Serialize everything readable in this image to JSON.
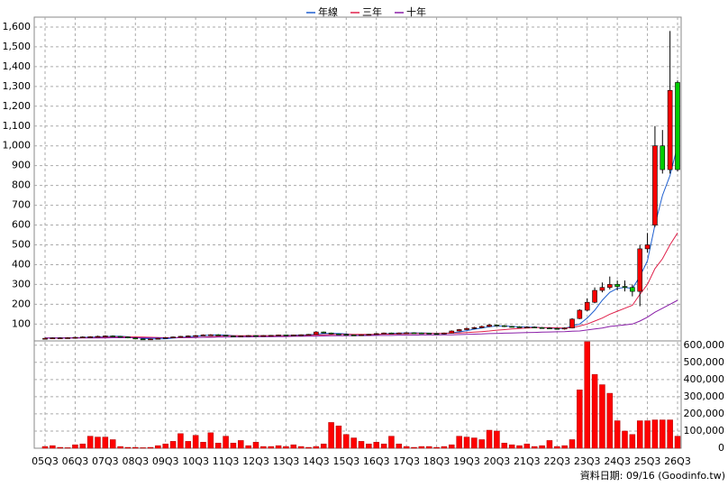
{
  "chart_data": {
    "type": "candlestick",
    "legend": "top",
    "categories": [
      "05Q3",
      null,
      null,
      null,
      "06Q3",
      null,
      null,
      null,
      "07Q3",
      null,
      null,
      null,
      "08Q3",
      null,
      null,
      null,
      "09Q3",
      null,
      null,
      null,
      "10Q3",
      null,
      null,
      null,
      "11Q3",
      null,
      null,
      null,
      "12Q3",
      null,
      null,
      null,
      "13Q3",
      null,
      null,
      null,
      "14Q3",
      null,
      null,
      null,
      "15Q3",
      null,
      null,
      null,
      "16Q3",
      null,
      null,
      null,
      "17Q3",
      null,
      null,
      null,
      "18Q3",
      null,
      null,
      null,
      "19Q3",
      null,
      null,
      null,
      "20Q3",
      null,
      null,
      null,
      "21Q3",
      null,
      null,
      null,
      "22Q3",
      null,
      null,
      null,
      "23Q3",
      null,
      null,
      null,
      "24Q3",
      null,
      null,
      null,
      "25Q3",
      null,
      null,
      null,
      "26Q3"
    ],
    "open": [
      27,
      28,
      30,
      30,
      31,
      33,
      35,
      36,
      38,
      40,
      38,
      35,
      30,
      25,
      22,
      25,
      28,
      32,
      35,
      38,
      40,
      42,
      45,
      46,
      44,
      40,
      38,
      40,
      42,
      40,
      42,
      43,
      45,
      44,
      45,
      46,
      48,
      60,
      55,
      50,
      48,
      45,
      43,
      46,
      48,
      52,
      55,
      54,
      55,
      56,
      55,
      54,
      52,
      50,
      55,
      65,
      72,
      78,
      82,
      88,
      95,
      92,
      88,
      86,
      84,
      85,
      82,
      80,
      78,
      75,
      80,
      128,
      170,
      210,
      270,
      285,
      300,
      290,
      285,
      265,
      480,
      600,
      1000,
      880,
      1320
    ],
    "high": [
      31,
      32,
      33,
      34,
      36,
      38,
      39,
      41,
      43,
      43,
      40,
      37,
      32,
      27,
      27,
      30,
      34,
      37,
      40,
      43,
      45,
      48,
      49,
      49,
      46,
      42,
      42,
      44,
      44,
      44,
      45,
      47,
      47,
      47,
      48,
      50,
      64,
      62,
      57,
      52,
      50,
      47,
      48,
      50,
      54,
      57,
      57,
      57,
      58,
      58,
      57,
      56,
      54,
      57,
      68,
      75,
      82,
      86,
      92,
      100,
      98,
      95,
      91,
      89,
      88,
      88,
      85,
      83,
      81,
      83,
      130,
      175,
      230,
      285,
      310,
      340,
      320,
      320,
      300,
      500,
      560,
      1100,
      1080,
      1580,
      1330
    ],
    "low": [
      25,
      26,
      28,
      28,
      29,
      31,
      33,
      34,
      36,
      36,
      33,
      28,
      23,
      20,
      20,
      23,
      26,
      30,
      33,
      36,
      38,
      40,
      43,
      42,
      38,
      36,
      36,
      38,
      38,
      38,
      40,
      41,
      42,
      42,
      43,
      44,
      46,
      53,
      48,
      46,
      43,
      41,
      41,
      44,
      46,
      50,
      52,
      52,
      53,
      53,
      52,
      50,
      48,
      48,
      53,
      63,
      70,
      75,
      80,
      85,
      88,
      85,
      83,
      81,
      81,
      79,
      77,
      75,
      72,
      72,
      78,
      125,
      165,
      205,
      260,
      275,
      270,
      265,
      240,
      190,
      460,
      590,
      860,
      860,
      870
    ],
    "close": [
      28,
      30,
      30,
      31,
      33,
      35,
      36,
      38,
      40,
      38,
      35,
      30,
      25,
      22,
      25,
      28,
      32,
      35,
      38,
      40,
      42,
      45,
      46,
      44,
      40,
      38,
      40,
      42,
      40,
      42,
      43,
      45,
      44,
      45,
      46,
      48,
      60,
      55,
      50,
      48,
      45,
      43,
      46,
      48,
      52,
      55,
      54,
      55,
      56,
      55,
      54,
      52,
      50,
      55,
      65,
      72,
      78,
      82,
      88,
      95,
      92,
      88,
      86,
      84,
      85,
      82,
      80,
      78,
      75,
      80,
      125,
      170,
      210,
      270,
      285,
      300,
      290,
      285,
      265,
      480,
      500,
      1000,
      880,
      1280,
      880
    ],
    "volume": [
      10000,
      15000,
      5000,
      3000,
      20000,
      25000,
      70000,
      65000,
      65000,
      50000,
      10000,
      5000,
      5000,
      3000,
      5000,
      15000,
      25000,
      40000,
      85000,
      40000,
      75000,
      35000,
      90000,
      30000,
      70000,
      30000,
      45000,
      15000,
      35000,
      10000,
      10000,
      15000,
      10000,
      20000,
      10000,
      5000,
      10000,
      25000,
      150000,
      130000,
      80000,
      60000,
      40000,
      25000,
      35000,
      25000,
      70000,
      25000,
      10000,
      5000,
      10000,
      10000,
      5000,
      10000,
      20000,
      70000,
      65000,
      60000,
      50000,
      105000,
      100000,
      30000,
      20000,
      15000,
      25000,
      10000,
      15000,
      45000,
      10000,
      15000,
      50000,
      340000,
      620000,
      430000,
      370000,
      320000,
      160000,
      100000,
      80000,
      160000,
      160000,
      165000,
      165000,
      165000,
      70000
    ],
    "up_color": "#ff0000",
    "down_color": "#00cc00",
    "volume_color": "#ff0000",
    "lines": [
      {
        "name": "年線",
        "color": "#1f5fd0",
        "values": [
          29,
          29,
          30,
          30,
          31,
          32,
          34,
          35,
          37,
          38,
          38,
          36,
          32,
          28,
          25,
          25,
          26,
          29,
          32,
          36,
          39,
          42,
          44,
          45,
          44,
          42,
          40,
          40,
          41,
          41,
          41,
          42,
          43,
          44,
          45,
          46,
          49,
          52,
          53,
          53,
          50,
          47,
          45,
          45,
          47,
          50,
          53,
          54,
          55,
          55,
          55,
          54,
          53,
          53,
          56,
          60,
          67,
          74,
          80,
          87,
          90,
          90,
          88,
          86,
          84,
          84,
          82,
          80,
          78,
          78,
          90,
          100,
          130,
          170,
          220,
          260,
          280,
          285,
          280,
          340,
          420,
          600,
          750,
          850,
          1000
        ]
      },
      {
        "name": "三年",
        "color": "#e0204a",
        "values": [
          30,
          30,
          30,
          30,
          30,
          31,
          31,
          32,
          33,
          34,
          35,
          35,
          35,
          34,
          33,
          32,
          31,
          31,
          31,
          31,
          32,
          34,
          36,
          38,
          40,
          41,
          41,
          41,
          41,
          41,
          41,
          41,
          41,
          42,
          42,
          43,
          44,
          46,
          47,
          48,
          48,
          48,
          48,
          48,
          48,
          49,
          49,
          50,
          51,
          52,
          53,
          53,
          53,
          53,
          54,
          55,
          57,
          59,
          62,
          65,
          69,
          72,
          75,
          78,
          80,
          82,
          82,
          82,
          81,
          80,
          82,
          90,
          100,
          115,
          130,
          150,
          165,
          180,
          195,
          250,
          300,
          380,
          430,
          500,
          560
        ]
      },
      {
        "name": "十年",
        "color": "#8a1fa8",
        "values": [
          30,
          30,
          30,
          30,
          30,
          30,
          30,
          30,
          30,
          31,
          31,
          31,
          31,
          31,
          31,
          31,
          31,
          31,
          32,
          32,
          32,
          33,
          33,
          34,
          34,
          35,
          35,
          35,
          36,
          36,
          36,
          37,
          37,
          38,
          38,
          39,
          39,
          40,
          41,
          41,
          41,
          42,
          42,
          42,
          43,
          43,
          43,
          44,
          44,
          44,
          45,
          45,
          45,
          46,
          46,
          47,
          48,
          49,
          50,
          52,
          53,
          54,
          55,
          56,
          57,
          58,
          59,
          60,
          61,
          62,
          64,
          65,
          70,
          75,
          80,
          88,
          92,
          96,
          100,
          115,
          135,
          160,
          180,
          200,
          220
        ]
      }
    ],
    "ylim": [
      15,
      1650
    ],
    "yticks": [
      100,
      200,
      300,
      400,
      500,
      600,
      700,
      800,
      900,
      {
        "value": 1000,
        "label": "1,000"
      },
      {
        "value": 1100,
        "label": "1,100"
      },
      {
        "value": 1200,
        "label": "1,200"
      },
      {
        "value": 1300,
        "label": "1,300"
      },
      {
        "value": 1400,
        "label": "1,400"
      },
      {
        "value": 1500,
        "label": "1,500"
      },
      {
        "value": 1600,
        "label": "1,600"
      }
    ],
    "volume_ylim": [
      0,
      625000
    ],
    "volume_yticks": [
      0,
      {
        "value": 100000,
        "label": "100,000"
      },
      {
        "value": 200000,
        "label": "200,000"
      },
      {
        "value": 300000,
        "label": "300,000"
      },
      {
        "value": 400000,
        "label": "400,000"
      },
      {
        "value": 500000,
        "label": "500,000"
      },
      {
        "value": 600000,
        "label": "600,000"
      }
    ],
    "grid": true,
    "note": "資料日期: 09/16  (Goodinfo.tw)"
  }
}
